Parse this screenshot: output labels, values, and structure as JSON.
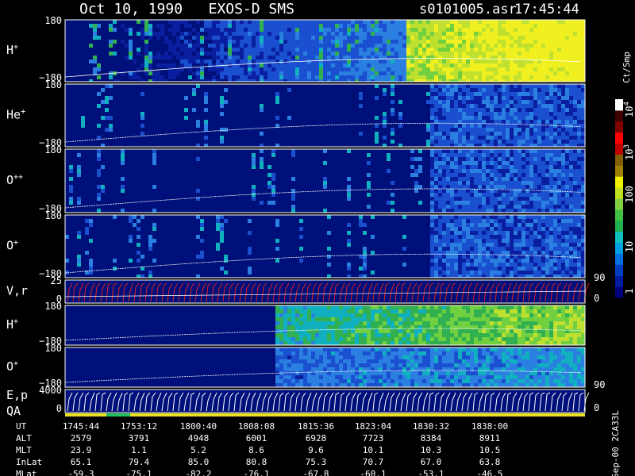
{
  "header": {
    "title": "Oct 10, 1990   EXOS-D SMS",
    "file": "s0101005.asr",
    "time": "17:45:44"
  },
  "panels": [
    {
      "label": "H",
      "sup": "+",
      "top": "180",
      "bottom": "−180"
    },
    {
      "label": "He",
      "sup": "+",
      "top": "180",
      "bottom": "−180"
    },
    {
      "label": "O",
      "sup": "++",
      "top": "180",
      "bottom": "−180"
    },
    {
      "label": "O",
      "sup": "+",
      "top": "180",
      "bottom": "−180"
    },
    {
      "label": "V,r",
      "top": "25",
      "bottom": "0",
      "right_top": "90",
      "right_bottom": "0"
    },
    {
      "label": "H",
      "sup": "+",
      "top": "180",
      "bottom": "−180"
    },
    {
      "label": "O",
      "sup": "+",
      "top": "180",
      "bottom": "−180"
    },
    {
      "label": "E,p",
      "label2": "QA",
      "top": "4000",
      "bottom": "0",
      "right_top": "90",
      "right_bottom": "0"
    }
  ],
  "colorbar": {
    "unit": "Ct/Smp",
    "labels": [
      {
        "base": "10",
        "sup": "4"
      },
      {
        "base": "10",
        "sup": "3"
      },
      {
        "base": "100"
      },
      {
        "base": "10"
      },
      {
        "base": "1"
      }
    ]
  },
  "footer": {
    "rows": [
      {
        "name": "UT",
        "values": [
          "1745:44",
          "1753:12",
          "1800:40",
          "1808:08",
          "1815:36",
          "1823:04",
          "1830:32",
          "1838:00"
        ]
      },
      {
        "name": "ALT",
        "values": [
          "2579",
          "3791",
          "4948",
          "6001",
          "6928",
          "7723",
          "8384",
          "8911"
        ]
      },
      {
        "name": "MLT",
        "values": [
          "23.9",
          "1.1",
          "5.2",
          "8.6",
          "9.6",
          "10.1",
          "10.3",
          "10.5"
        ]
      },
      {
        "name": "InLat",
        "values": [
          "65.1",
          "79.4",
          "85.0",
          "80.8",
          "75.3",
          "70.7",
          "67.0",
          "63.8"
        ]
      },
      {
        "name": "MLat",
        "values": [
          "-59.3",
          "-75.1",
          "-82.2",
          "-76.1",
          "-67.8",
          "-60.1",
          "-53.1",
          "-46.5"
        ]
      }
    ],
    "note": "Sep-00 2CA33L"
  }
}
